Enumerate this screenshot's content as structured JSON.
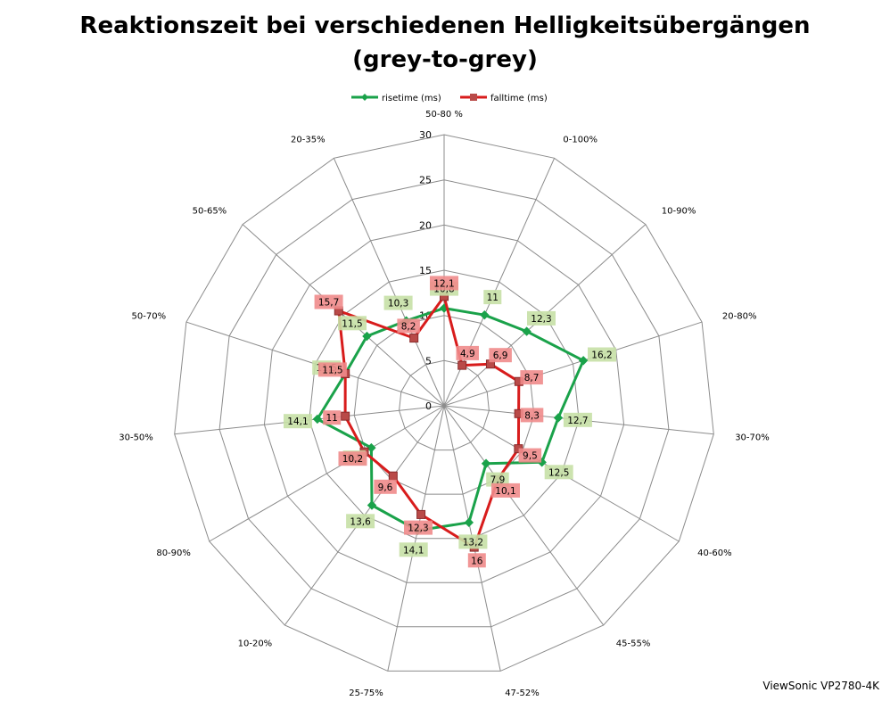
{
  "footer": {
    "watermark": "ViewSonic VP2780-4K"
  },
  "chart_data": {
    "type": "radar",
    "title": "Reaktionszeit bei verschiedenen Helligkeitsübergängen",
    "subtitle": "(grey-to-grey)",
    "categories": [
      "50-80 %",
      "0-100%",
      "10-90%",
      "20-80%",
      "30-70%",
      "40-60%",
      "45-55%",
      "47-52%",
      "25-75%",
      "10-20%",
      "80-90%",
      "30-50%",
      "50-70%",
      "50-65%",
      "20-35%"
    ],
    "rlim": [
      0,
      30
    ],
    "ticks": [
      0,
      5,
      10,
      15,
      20,
      25,
      30
    ],
    "grid": true,
    "legend_position": "top",
    "series": [
      {
        "name": "risetime (ms)",
        "color": "#1aa24a",
        "label_bg": "#c6e0a6",
        "values": [
          10.8,
          11,
          12.3,
          16.2,
          12.7,
          12.5,
          7.9,
          13.2,
          14.1,
          13.6,
          9.3,
          14.1,
          11.5,
          11.5,
          10.3
        ],
        "labels": [
          "10,8",
          "11",
          "12,3",
          "16,2",
          "12,7",
          "12,5",
          "7,9",
          "13,2",
          "14,1",
          "13,6",
          "9,3",
          "14,1",
          "11,5",
          "11,5",
          "10,3"
        ]
      },
      {
        "name": "falltime (ms)",
        "color": "#d81c1c",
        "label_bg": "#f08b8b",
        "values": [
          12.1,
          4.9,
          6.9,
          8.7,
          8.3,
          9.5,
          10.1,
          16,
          12.3,
          9.6,
          10.2,
          11,
          11.5,
          15.7,
          8.2
        ],
        "labels": [
          "12,1",
          "4,9",
          "6,9",
          "8,7",
          "8,3",
          "9,5",
          "10,1",
          "16",
          "12,3",
          "9,6",
          "10,2",
          "11",
          "11,5",
          "15,7",
          "8,2"
        ]
      }
    ]
  }
}
